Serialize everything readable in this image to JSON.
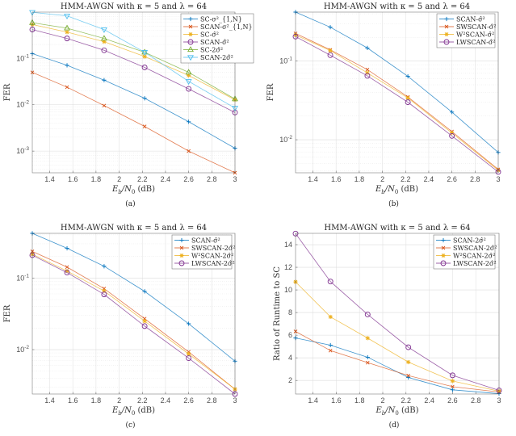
{
  "figure": {
    "colors": {
      "blue": "#0072BD",
      "red": "#D95319",
      "yellow": "#EDB120",
      "purple": "#7E2F8E",
      "green": "#77AC30",
      "cyan": "#4DBEEE"
    }
  },
  "chart_data": [
    {
      "id": "a",
      "type": "line",
      "title": "HMM-AWGN with κ = 5 and λ = 64",
      "caption": "(a)",
      "xlabel": "E_b/N_0 (dB)",
      "ylabel": "FER",
      "yscale": "log",
      "xlim": [
        1.25,
        3.0
      ],
      "ylim": [
        0.00034,
        1.0
      ],
      "grid": true,
      "legend_position": "top-right",
      "x": [
        1.25,
        1.55,
        1.87,
        2.22,
        2.6,
        3.0
      ],
      "xticks": [
        1.4,
        1.6,
        1.8,
        2,
        2.2,
        2.4,
        2.6,
        2.8,
        3
      ],
      "xtick_labels": [
        "1.4",
        "1.6",
        "1.8",
        "2",
        "2.2",
        "2.4",
        "2.6",
        "2.8",
        "3"
      ],
      "yticks": [
        0.001,
        0.01,
        0.1
      ],
      "ytick_labels": [
        "10^-3",
        "10^-2",
        "10^-1"
      ],
      "series": [
        {
          "name": "SC-σ²_{1,N}",
          "color": "blue",
          "marker": "plus",
          "values": [
            0.127,
            0.071,
            0.034,
            0.0138,
            0.0043,
            0.00115
          ]
        },
        {
          "name": "SCAN-σ²_{1,N}",
          "color": "red",
          "marker": "x",
          "values": [
            0.05,
            0.024,
            0.0096,
            0.0034,
            0.001,
            0.00034
          ]
        },
        {
          "name": "SC-σ̂²",
          "color": "yellow",
          "marker": "star",
          "values": [
            0.54,
            0.37,
            0.23,
            0.11,
            0.043,
            0.0128
          ]
        },
        {
          "name": "SCAN-σ̂²",
          "color": "purple",
          "marker": "circle",
          "values": [
            0.42,
            0.27,
            0.15,
            0.064,
            0.022,
            0.0068
          ]
        },
        {
          "name": "SC-2σ̂²",
          "color": "green",
          "marker": "triangle-up",
          "values": [
            0.59,
            0.45,
            0.27,
            0.136,
            0.05,
            0.0133
          ]
        },
        {
          "name": "SCAN-2σ̂²",
          "color": "cyan",
          "marker": "triangle-down",
          "values": [
            0.99,
            0.83,
            0.42,
            0.136,
            0.032,
            0.0085
          ]
        }
      ]
    },
    {
      "id": "b",
      "type": "line",
      "title": "HMM-AWGN with κ = 5 and λ = 64",
      "caption": "(b)",
      "xlabel": "E_b/N_0 (dB)",
      "ylabel": "FER",
      "yscale": "log",
      "xlim": [
        1.25,
        3.0
      ],
      "ylim": [
        0.0038,
        0.42
      ],
      "grid": true,
      "legend_position": "top-right",
      "x": [
        1.25,
        1.55,
        1.87,
        2.22,
        2.6,
        3.0
      ],
      "xticks": [
        1.4,
        1.6,
        1.8,
        2,
        2.2,
        2.4,
        2.6,
        2.8,
        3
      ],
      "xtick_labels": [
        "1.4",
        "1.6",
        "1.8",
        "2",
        "2.2",
        "2.4",
        "2.6",
        "2.8",
        "3"
      ],
      "yticks": [
        0.01,
        0.1
      ],
      "ytick_labels": [
        "10^-2",
        "10^-1"
      ],
      "series": [
        {
          "name": "SCAN-σ̂²",
          "color": "blue",
          "marker": "plus",
          "values": [
            0.42,
            0.27,
            0.147,
            0.064,
            0.0225,
            0.0069
          ]
        },
        {
          "name": "SWSCAN-σ̂²",
          "color": "red",
          "marker": "x",
          "values": [
            0.225,
            0.139,
            0.078,
            0.035,
            0.0127,
            0.0042
          ]
        },
        {
          "name": "W²SCAN-σ̂²",
          "color": "yellow",
          "marker": "star",
          "values": [
            0.215,
            0.136,
            0.071,
            0.034,
            0.0122,
            0.0041
          ]
        },
        {
          "name": "LWSCAN-σ̂²",
          "color": "purple",
          "marker": "circle",
          "values": [
            0.205,
            0.119,
            0.065,
            0.03,
            0.0112,
            0.0039
          ]
        }
      ]
    },
    {
      "id": "c",
      "type": "line",
      "title": "HMM-AWGN with κ = 5 and λ = 64",
      "caption": "(c)",
      "xlabel": "E_b/N_0 (dB)",
      "ylabel": "FER",
      "yscale": "log",
      "xlim": [
        1.25,
        3.0
      ],
      "ylim": [
        0.0024,
        0.42
      ],
      "grid": true,
      "legend_position": "top-right",
      "x": [
        1.25,
        1.55,
        1.87,
        2.22,
        2.6,
        3.0
      ],
      "xticks": [
        1.4,
        1.6,
        1.8,
        2,
        2.2,
        2.4,
        2.6,
        2.8,
        3
      ],
      "xtick_labels": [
        "1.4",
        "1.6",
        "1.8",
        "2",
        "2.2",
        "2.4",
        "2.6",
        "2.8",
        "3"
      ],
      "yticks": [
        0.01,
        0.1
      ],
      "ytick_labels": [
        "10^-2",
        "10^-1"
      ],
      "series": [
        {
          "name": "SCAN-σ̂²",
          "color": "blue",
          "marker": "plus",
          "values": [
            0.42,
            0.26,
            0.146,
            0.065,
            0.023,
            0.0069
          ]
        },
        {
          "name": "SWSCAN-2σ̂²",
          "color": "red",
          "marker": "x",
          "values": [
            0.235,
            0.142,
            0.071,
            0.027,
            0.0093,
            0.0028
          ]
        },
        {
          "name": "W²SCAN-2σ̂²",
          "color": "yellow",
          "marker": "star",
          "values": [
            0.215,
            0.125,
            0.066,
            0.025,
            0.0087,
            0.0028
          ]
        },
        {
          "name": "LWSCAN-2σ̂²",
          "color": "purple",
          "marker": "circle",
          "values": [
            0.208,
            0.119,
            0.059,
            0.0213,
            0.0076,
            0.0024
          ]
        }
      ]
    },
    {
      "id": "d",
      "type": "line",
      "title": "HMM-AWGN with κ = 5 and λ = 64",
      "caption": "(d)",
      "xlabel": "E_b/N_0 (dB)",
      "ylabel": "Ratio of Runtime to SC",
      "yscale": "linear",
      "xlim": [
        1.25,
        3.0
      ],
      "ylim": [
        0.8,
        15
      ],
      "grid": true,
      "legend_position": "top-right",
      "x": [
        1.25,
        1.55,
        1.87,
        2.22,
        2.6,
        3.0
      ],
      "xticks": [
        1.4,
        1.6,
        1.8,
        2,
        2.2,
        2.4,
        2.6,
        2.8,
        3
      ],
      "xtick_labels": [
        "1.4",
        "1.6",
        "1.8",
        "2",
        "2.2",
        "2.4",
        "2.6",
        "2.8",
        "3"
      ],
      "yticks": [
        2,
        4,
        6,
        8,
        10,
        12,
        14
      ],
      "ytick_labels": [
        "2",
        "4",
        "6",
        "8",
        "10",
        "12",
        "14"
      ],
      "series": [
        {
          "name": "SCAN-2σ̂²",
          "color": "blue",
          "marker": "plus",
          "values": [
            5.75,
            5.12,
            4.05,
            2.26,
            1.17,
            0.83
          ]
        },
        {
          "name": "SWSCAN-2σ̂²",
          "color": "red",
          "marker": "x",
          "values": [
            6.33,
            4.64,
            3.57,
            2.43,
            1.45,
            0.98
          ]
        },
        {
          "name": "W²SCAN-2σ̂²",
          "color": "yellow",
          "marker": "star",
          "values": [
            10.71,
            7.62,
            5.74,
            3.62,
            1.95,
            1.05
          ]
        },
        {
          "name": "LWSCAN-2σ̂²",
          "color": "purple",
          "marker": "circle",
          "values": [
            14.98,
            10.74,
            7.83,
            4.93,
            2.45,
            1.12
          ]
        }
      ]
    }
  ]
}
